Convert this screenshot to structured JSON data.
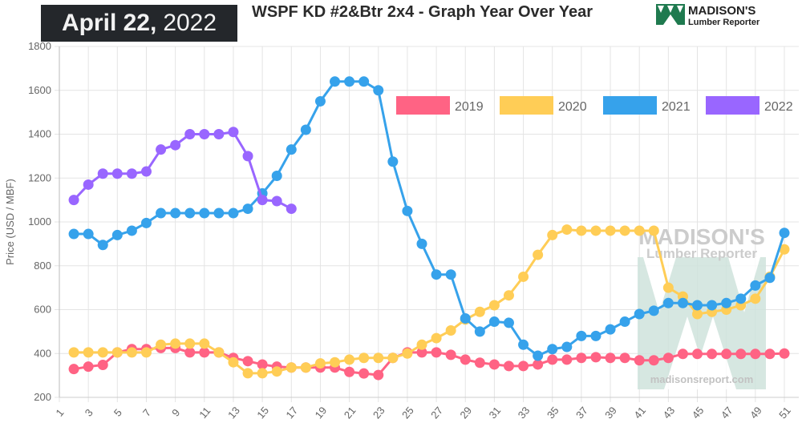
{
  "header": {
    "date_bold": "April 22,",
    "date_year": "2022",
    "title": "WSPF KD #2&Btr 2x4 - Graph Year Over Year",
    "logo_line1": "MADISON'S",
    "logo_line2": "Lumber Reporter"
  },
  "watermark": {
    "line1": "MADISON'S",
    "line2": "Lumber Reporter",
    "url": "madisonsreport.com"
  },
  "chart_data": {
    "type": "line",
    "title": "WSPF KD #2&Btr 2x4 - Graph Year Over Year",
    "xlabel": "",
    "ylabel": "Price (USD / MBF)",
    "xlim": [
      1,
      52
    ],
    "ylim": [
      200,
      1800
    ],
    "x_ticks": [
      "1",
      "3",
      "5",
      "7",
      "9",
      "11",
      "13",
      "15",
      "17",
      "19",
      "21",
      "23",
      "25",
      "27",
      "29",
      "31",
      "33",
      "35",
      "37",
      "39",
      "41",
      "43",
      "45",
      "47",
      "49",
      "51"
    ],
    "y_ticks": [
      "200",
      "400",
      "600",
      "800",
      "1000",
      "1200",
      "1400",
      "1600",
      "1800"
    ],
    "grid": true,
    "legend_position": "top-right",
    "series": [
      {
        "name": "2019",
        "color": "#ff6384",
        "x_start": 2,
        "values": [
          329,
          340,
          348,
          405,
          420,
          420,
          425,
          425,
          405,
          405,
          405,
          380,
          365,
          350,
          340,
          336,
          336,
          336,
          336,
          316,
          309,
          302,
          380,
          405,
          405,
          405,
          394,
          372,
          358,
          350,
          343,
          343,
          350,
          372,
          372,
          380,
          383,
          380,
          380,
          369,
          369,
          380,
          398,
          398,
          398,
          398,
          398,
          398,
          398,
          400
        ]
      },
      {
        "name": "2020",
        "color": "#ffcd56",
        "x_start": 2,
        "values": [
          405,
          405,
          405,
          405,
          405,
          405,
          440,
          445,
          445,
          445,
          405,
          360,
          310,
          310,
          318,
          336,
          336,
          355,
          360,
          372,
          380,
          380,
          380,
          400,
          440,
          470,
          505,
          555,
          590,
          620,
          665,
          750,
          850,
          940,
          965,
          960,
          960,
          960,
          960,
          960,
          960,
          700,
          660,
          580,
          590,
          600,
          620,
          650,
          750,
          875
        ]
      },
      {
        "name": "2021",
        "color": "#36a2eb",
        "x_start": 2,
        "values": [
          945,
          945,
          895,
          940,
          960,
          995,
          1040,
          1040,
          1040,
          1040,
          1040,
          1040,
          1060,
          1130,
          1210,
          1330,
          1420,
          1550,
          1640,
          1640,
          1640,
          1600,
          1275,
          1050,
          900,
          760,
          760,
          560,
          500,
          545,
          540,
          440,
          390,
          420,
          430,
          480,
          480,
          510,
          545,
          580,
          595,
          630,
          630,
          620,
          620,
          630,
          650,
          710,
          745,
          950
        ]
      },
      {
        "name": "2022",
        "color": "#9966ff",
        "x_start": 2,
        "values": [
          1100,
          1170,
          1220,
          1220,
          1220,
          1230,
          1330,
          1350,
          1400,
          1400,
          1400,
          1410,
          1300,
          1100,
          1095,
          1060
        ]
      }
    ]
  }
}
